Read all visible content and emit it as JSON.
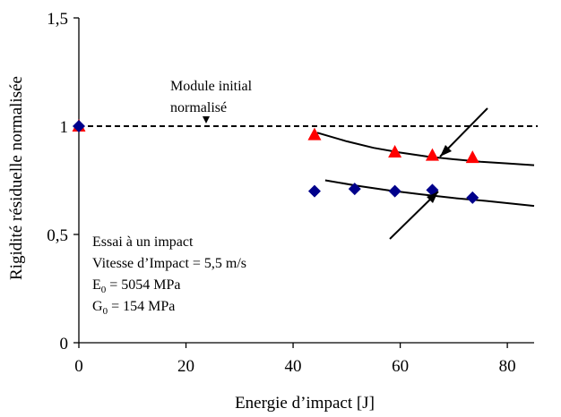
{
  "chart_data": {
    "type": "scatter",
    "xlabel": "Energie d’impact [J]",
    "ylabel": "Rigidité résiduelle normalisée",
    "xlim": [
      0,
      85
    ],
    "ylim": [
      0,
      1.5
    ],
    "x_ticks": [
      0,
      20,
      40,
      60,
      80
    ],
    "x_tick_labels": [
      "0",
      "20",
      "40",
      "60",
      "80"
    ],
    "y_ticks": [
      0,
      0.5,
      1,
      1.5
    ],
    "y_tick_labels": [
      "0",
      "0,5",
      "1",
      "1,5"
    ],
    "grid": false,
    "reference_line": {
      "y": 1,
      "style": "dashed"
    },
    "series": [
      {
        "marker": "triangle",
        "color": "#ff0000",
        "x": [
          0,
          44,
          59,
          66,
          73.5
        ],
        "y": [
          1.0,
          0.96,
          0.88,
          0.865,
          0.855
        ]
      },
      {
        "marker": "diamond",
        "color": "#00008b",
        "x": [
          0,
          44,
          51.5,
          59,
          66,
          73.5
        ],
        "y": [
          1.0,
          0.7,
          0.71,
          0.7,
          0.705,
          0.67
        ]
      }
    ],
    "trend_lines": [
      {
        "x": [
          44.5,
          50,
          55,
          60,
          65,
          70,
          75,
          80,
          85
        ],
        "y": [
          0.97,
          0.93,
          0.9,
          0.878,
          0.86,
          0.847,
          0.836,
          0.828,
          0.82
        ]
      },
      {
        "x": [
          46,
          52,
          58,
          64,
          70,
          76,
          85
        ],
        "y": [
          0.75,
          0.725,
          0.703,
          0.685,
          0.668,
          0.655,
          0.632
        ]
      }
    ],
    "annotations": {
      "initial_module": [
        "Module initial",
        "normalisé"
      ],
      "test_info": [
        "Essai à un impact",
        "Vitesse d’Impact = 5,5 m/s"
      ],
      "e0": {
        "symbol": "E",
        "sub": "0",
        "rest": " = 5054 MPa"
      },
      "g0": {
        "symbol": "G",
        "sub": "0",
        "rest": " = 154 MPa"
      }
    }
  }
}
